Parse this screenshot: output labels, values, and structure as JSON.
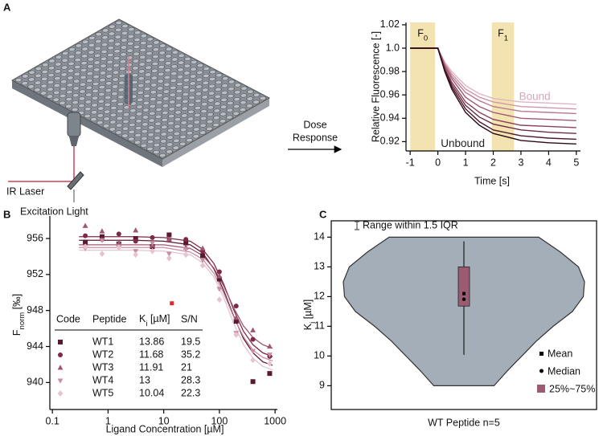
{
  "panels": [
    "A",
    "B",
    "C"
  ],
  "illustration": {
    "ir_laser": "IR Laser",
    "excitation_light": "Excitation Light",
    "arrow_label_lines": [
      "Dose",
      "Response"
    ]
  },
  "chart_data": [
    {
      "type": "line",
      "xlabel": "Time [s]",
      "ylabel": "Relative Fluorescence [-]",
      "xlim": [
        -1.15,
        5.15
      ],
      "xticks": [
        -1,
        0,
        1,
        2,
        3,
        4,
        5
      ],
      "ylim": [
        0.912,
        1.022
      ],
      "yticks": [
        0.92,
        0.94,
        0.96,
        0.98,
        {
          "value": 1,
          "label": "1.0"
        },
        1.02
      ],
      "highlights": [
        {
          "x": [
            -1,
            -0.1
          ],
          "label": [
            "F",
            "0"
          ]
        },
        {
          "x": [
            1.95,
            2.75
          ],
          "label": [
            "F",
            "1"
          ]
        }
      ],
      "highlight_color": "#f3e3b0",
      "annotations": [
        {
          "text": "Bound",
          "x": 3.5,
          "y": 0.958,
          "color": "#d9a5b5"
        },
        {
          "text": "Unbound",
          "x": 0.9,
          "y": 0.918,
          "color": "#222222"
        }
      ],
      "x": [
        -1,
        0,
        0.25,
        0.5,
        1,
        1.5,
        2,
        3,
        4,
        5
      ],
      "series": [
        {
          "color": "#e0b5c3",
          "values": [
            1,
            1,
            0.988,
            0.98,
            0.968,
            0.961,
            0.957,
            0.954,
            0.953,
            0.952
          ]
        },
        {
          "color": "#cf98aa",
          "values": [
            1,
            1,
            0.987,
            0.978,
            0.965,
            0.958,
            0.954,
            0.95,
            0.949,
            0.948
          ]
        },
        {
          "color": "#b87a90",
          "values": [
            1,
            1,
            0.986,
            0.976,
            0.962,
            0.955,
            0.95,
            0.946,
            0.945,
            0.944
          ]
        },
        {
          "color": "#a05a73",
          "values": [
            1,
            1,
            0.985,
            0.974,
            0.958,
            0.95,
            0.945,
            0.94,
            0.939,
            0.938
          ]
        },
        {
          "color": "#884259",
          "values": [
            1,
            1,
            0.983,
            0.971,
            0.954,
            0.945,
            0.939,
            0.934,
            0.933,
            0.932
          ]
        },
        {
          "color": "#6c2b42",
          "values": [
            1,
            1,
            0.982,
            0.969,
            0.951,
            0.941,
            0.935,
            0.93,
            0.928,
            0.927
          ]
        },
        {
          "color": "#4f1a2c",
          "values": [
            1,
            1,
            0.981,
            0.967,
            0.948,
            0.937,
            0.93,
            0.925,
            0.923,
            0.922
          ]
        },
        {
          "color": "#2e0a17",
          "values": [
            1,
            1,
            0.98,
            0.965,
            0.945,
            0.934,
            0.927,
            0.921,
            0.919,
            0.918
          ]
        }
      ]
    },
    {
      "type": "scatter",
      "xscale": "log",
      "xlabel": "Ligand Concentration [µM]",
      "ylabel": [
        "F",
        "norm",
        " [‰]"
      ],
      "xlim": [
        0.09,
        1100
      ],
      "xticks": [
        0.1,
        1,
        10,
        100,
        1000
      ],
      "ylim": [
        937,
        958.5
      ],
      "yticks": [
        940,
        944,
        948,
        952,
        956
      ],
      "x": [
        0.39,
        0.78,
        1.56,
        3.13,
        6.25,
        12.5,
        25,
        50,
        100,
        200,
        400,
        800
      ],
      "fit_x": [
        0.3,
        1,
        3,
        10,
        30,
        50,
        80,
        120,
        180,
        270,
        400,
        600,
        900
      ],
      "table_header": [
        "Code",
        "Peptide",
        [
          "K",
          "i",
          " [µM]"
        ],
        "S/N"
      ],
      "series": [
        {
          "name": "WT1",
          "marker": "square",
          "color": "#5a1a2e",
          "ki": 13.86,
          "sn": 19.5,
          "values": [
            955.6,
            956.2,
            955.4,
            956.0,
            955.1,
            956.4,
            955.5,
            954.1,
            951.5,
            946.8,
            940.1,
            941.0
          ],
          "fit_values": [
            955.8,
            955.8,
            955.8,
            955.7,
            955.3,
            954.4,
            952.6,
            950.2,
            947.4,
            944.9,
            943.3,
            942.3,
            941.9
          ]
        },
        {
          "name": "WT2",
          "marker": "circle",
          "color": "#7d2a45",
          "ki": 11.68,
          "sn": 35.2,
          "values": [
            956.3,
            955.9,
            956.5,
            955.7,
            956.1,
            955.8,
            955.9,
            954.6,
            952.3,
            948.5,
            944.8,
            942.9
          ],
          "fit_values": [
            956.2,
            956.2,
            956.2,
            956.1,
            955.7,
            954.8,
            953.2,
            950.9,
            948.1,
            945.7,
            944.2,
            943.3,
            942.9
          ]
        },
        {
          "name": "WT3",
          "marker": "triangle",
          "color": "#a0566d",
          "ki": 11.91,
          "sn": 21,
          "values": [
            957.4,
            956.8,
            955.5,
            956.9,
            955.2,
            955.9,
            955.0,
            954.9,
            951.8,
            947.2,
            945.8,
            944.0
          ],
          "fit_values": [
            955.3,
            955.3,
            955.3,
            955.3,
            954.9,
            954.1,
            952.7,
            950.7,
            948.3,
            946.3,
            945.0,
            944.2,
            943.8
          ]
        },
        {
          "name": "WT4",
          "marker": "triangle-down",
          "color": "#c98fa3",
          "ki": 13,
          "sn": 28.3,
          "values": [
            954.9,
            955.8,
            955.1,
            954.6,
            955.5,
            954.3,
            954.8,
            953.6,
            950.4,
            945.5,
            943.5,
            943.1
          ],
          "fit_values": [
            955.0,
            955.0,
            955.0,
            955.0,
            954.5,
            953.7,
            952.1,
            949.9,
            947.3,
            945.1,
            943.6,
            942.8,
            942.4
          ]
        },
        {
          "name": "WT5",
          "marker": "diamond",
          "color": "#e6c3cf",
          "ki": 10.04,
          "sn": 22.3,
          "values": [
            955.1,
            954.3,
            955.0,
            954.2,
            954.6,
            953.8,
            954.2,
            953.0,
            949.2,
            945.3,
            942.5,
            942.1
          ],
          "fit_values": [
            954.7,
            954.7,
            954.7,
            954.6,
            954.2,
            953.3,
            951.7,
            949.4,
            946.6,
            944.2,
            942.7,
            941.8,
            941.4
          ]
        }
      ],
      "extra_points": [
        {
          "x": 14,
          "y": 948.8,
          "color": "#e8232a"
        }
      ]
    },
    {
      "type": "violin",
      "categories": [
        "WT Peptide n=5"
      ],
      "ylabel": [
        "K",
        "i",
        " [µM]"
      ],
      "ylim": [
        8.2,
        14.55
      ],
      "yticks": [
        9,
        10,
        11,
        12,
        13,
        14
      ],
      "frame": true,
      "violin": {
        "color": "#a4aeb8",
        "y": [
          9,
          9.5,
          10,
          10.5,
          11,
          11.5,
          12,
          12.5,
          13,
          13.5,
          14
        ],
        "width": [
          0.25,
          0.36,
          0.48,
          0.6,
          0.74,
          0.9,
          0.99,
          1.0,
          0.95,
          0.8,
          0.62
        ]
      },
      "stats": {
        "whisker_low": 10.04,
        "q1": 11.68,
        "median": 11.91,
        "mean": 12.1,
        "q3": 13.0,
        "whisker_high": 13.86
      },
      "box_color": "#9b5b70",
      "legend": {
        "range": "Range within 1.5 IQR",
        "mean": "Mean",
        "median": "Median",
        "box": "25%~75%"
      }
    }
  ]
}
